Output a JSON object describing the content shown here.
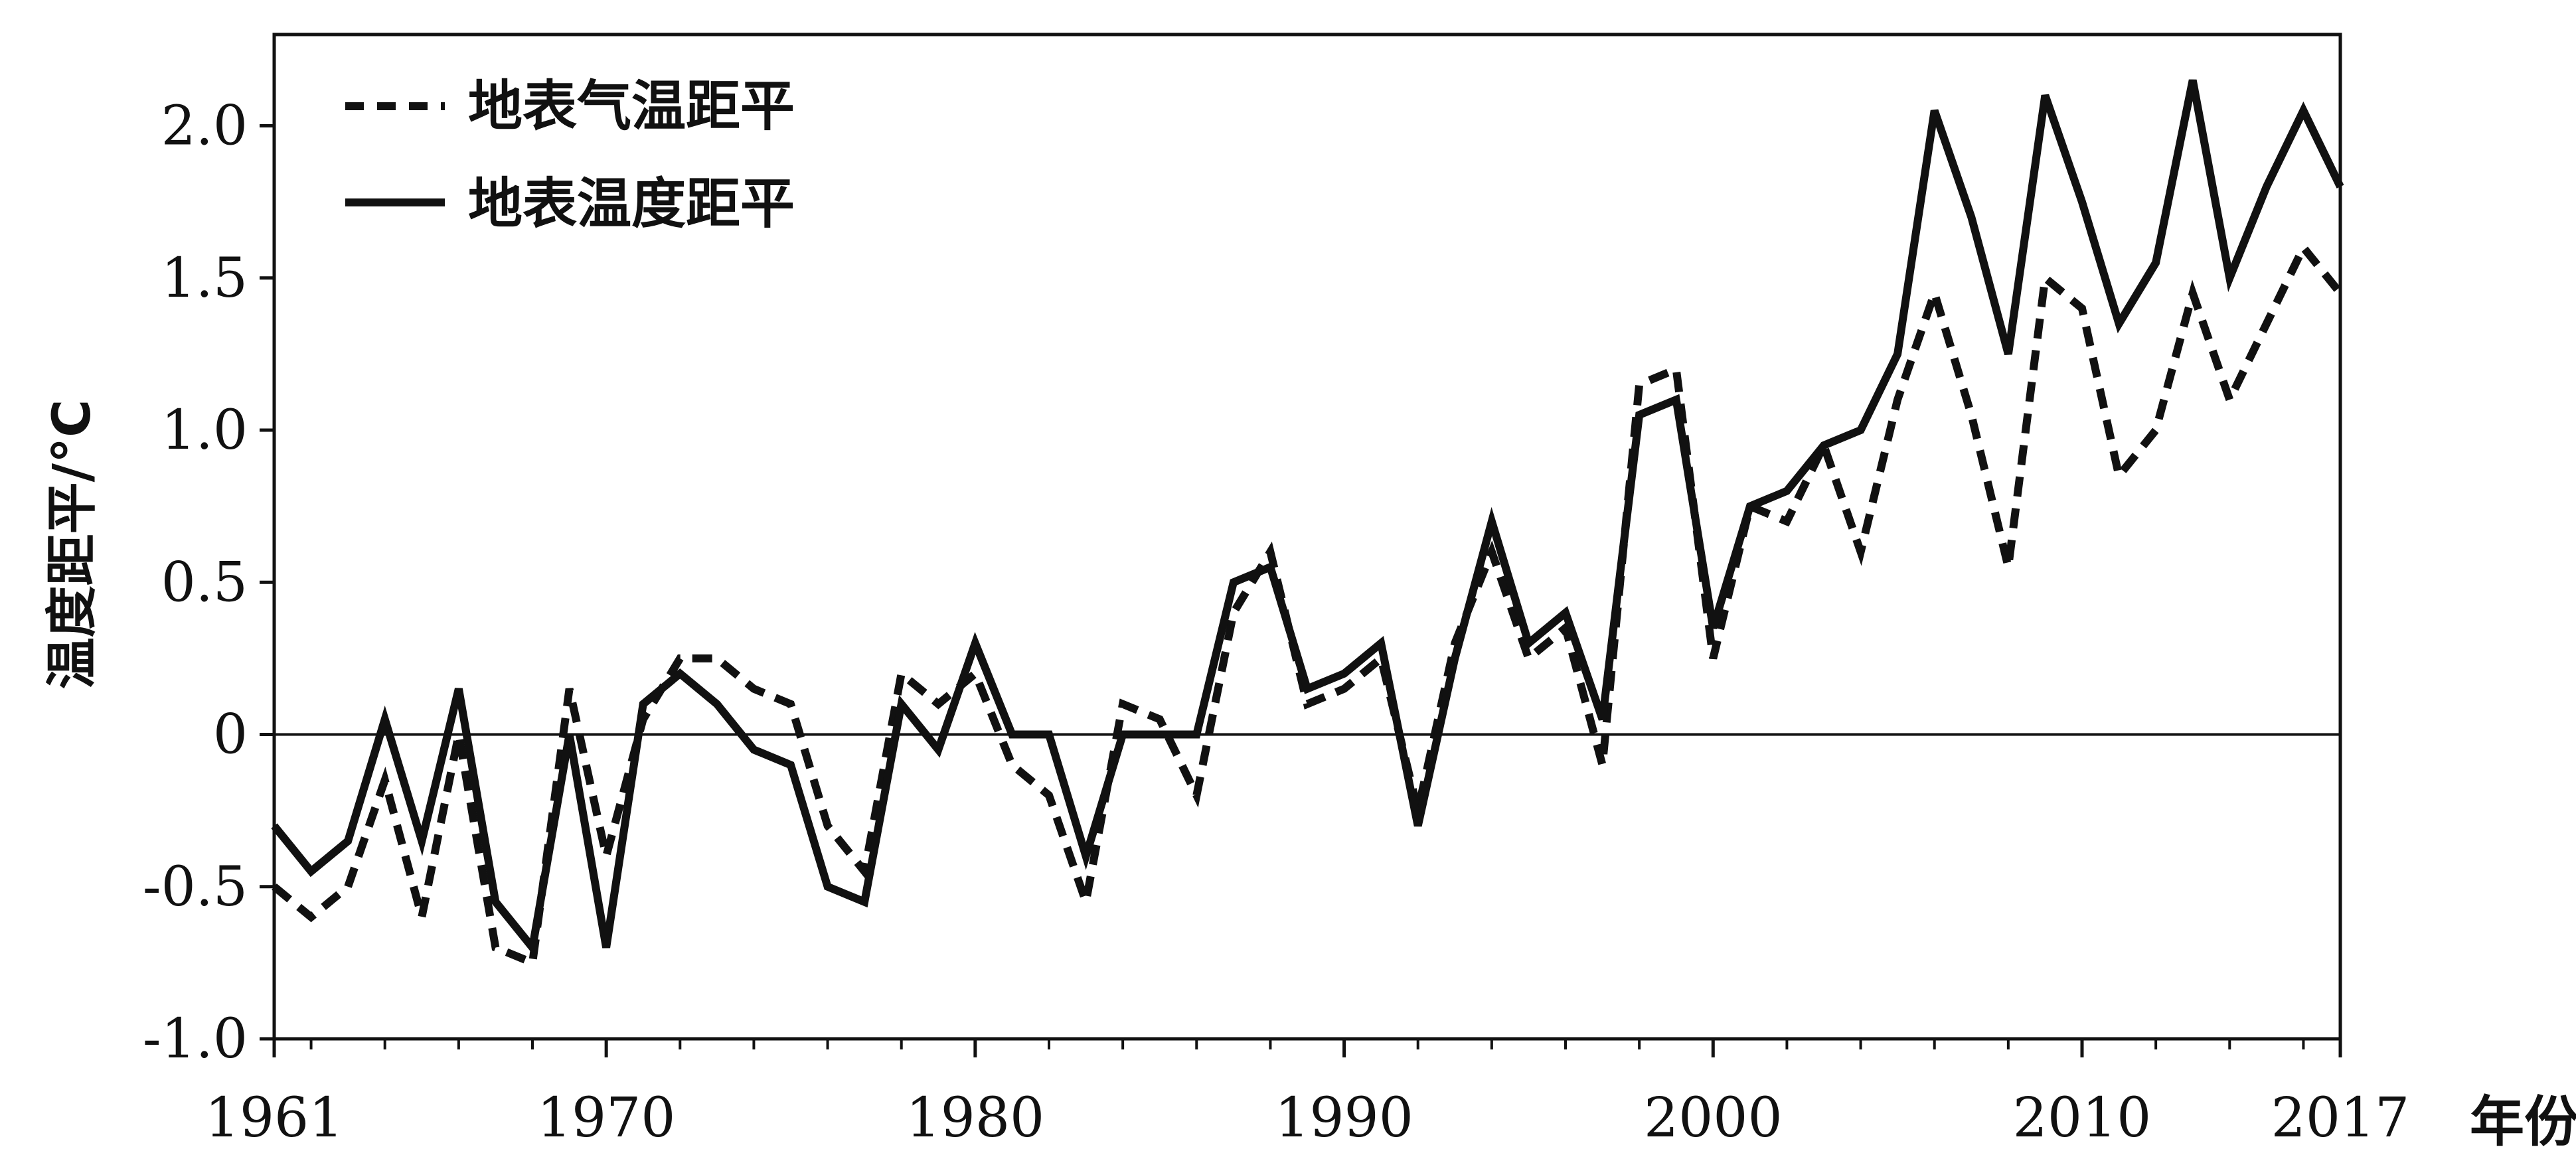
{
  "chart_data": {
    "type": "line",
    "xlabel": "年份",
    "ylabel": "温度距平/°C",
    "xlim": [
      1961,
      2017
    ],
    "ylim": [
      -1.0,
      2.3
    ],
    "x_ticks": [
      1961,
      1970,
      1980,
      1990,
      2000,
      2010,
      2017
    ],
    "y_ticks": [
      -1.0,
      -0.5,
      0,
      0.5,
      1.0,
      1.5,
      2.0
    ],
    "y_tick_labels": [
      "-1.0",
      "-0.5",
      "0",
      "0.5",
      "1.0",
      "1.5",
      "2.0"
    ],
    "legend_position": "top-left",
    "x": [
      1961,
      1962,
      1963,
      1964,
      1965,
      1966,
      1967,
      1968,
      1969,
      1970,
      1971,
      1972,
      1973,
      1974,
      1975,
      1976,
      1977,
      1978,
      1979,
      1980,
      1981,
      1982,
      1983,
      1984,
      1985,
      1986,
      1987,
      1988,
      1989,
      1990,
      1991,
      1992,
      1993,
      1994,
      1995,
      1996,
      1997,
      1998,
      1999,
      2000,
      2001,
      2002,
      2003,
      2004,
      2005,
      2006,
      2007,
      2008,
      2009,
      2010,
      2011,
      2012,
      2013,
      2014,
      2015,
      2016,
      2017
    ],
    "series": [
      {
        "name": "地表气温距平",
        "style": "dashed",
        "values": [
          -0.5,
          -0.6,
          -0.5,
          -0.15,
          -0.6,
          0.0,
          -0.7,
          -0.75,
          0.15,
          -0.4,
          0.05,
          0.25,
          0.25,
          0.15,
          0.1,
          -0.3,
          -0.45,
          0.2,
          0.1,
          0.2,
          -0.1,
          -0.2,
          -0.55,
          0.1,
          0.05,
          -0.2,
          0.4,
          0.6,
          0.1,
          0.15,
          0.25,
          -0.25,
          0.3,
          0.6,
          0.25,
          0.35,
          -0.1,
          1.15,
          1.2,
          0.25,
          0.75,
          0.7,
          0.95,
          0.6,
          1.1,
          1.45,
          1.05,
          0.55,
          1.5,
          1.4,
          0.85,
          1.0,
          1.45,
          1.1,
          1.35,
          1.6,
          1.45
        ]
      },
      {
        "name": "地表温度距平",
        "style": "solid",
        "values": [
          -0.3,
          -0.45,
          -0.35,
          0.05,
          -0.35,
          0.15,
          -0.55,
          -0.7,
          0.0,
          -0.7,
          0.1,
          0.2,
          0.1,
          -0.05,
          -0.1,
          -0.5,
          -0.55,
          0.1,
          -0.05,
          0.3,
          0.0,
          0.0,
          -0.4,
          0.0,
          0.0,
          0.0,
          0.5,
          0.55,
          0.15,
          0.2,
          0.3,
          -0.3,
          0.25,
          0.7,
          0.3,
          0.4,
          0.05,
          1.05,
          1.1,
          0.35,
          0.75,
          0.8,
          0.95,
          1.0,
          1.25,
          2.05,
          1.7,
          1.25,
          2.1,
          1.75,
          1.35,
          1.55,
          2.15,
          1.5,
          1.8,
          2.05,
          1.8
        ]
      }
    ]
  },
  "icons": {
    "legend_solid": "solid-line-swatch-icon",
    "legend_dashed": "dashed-line-swatch-icon"
  },
  "colors": {
    "line": "#111111",
    "background": "#ffffff"
  }
}
